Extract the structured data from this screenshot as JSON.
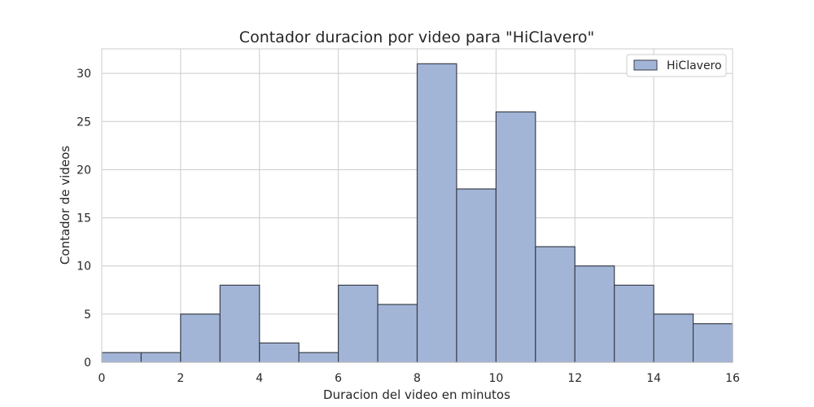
{
  "chart_data": {
    "type": "bar",
    "title": "Contador duracion por video para \"HiClavero\"",
    "xlabel": "Duracion del video en minutos",
    "ylabel": "Contador de videos",
    "xlim": [
      0,
      16
    ],
    "ylim": [
      0,
      32.55
    ],
    "x_ticks": [
      0,
      2,
      4,
      6,
      8,
      10,
      12,
      14,
      16
    ],
    "y_ticks": [
      0,
      5,
      10,
      15,
      20,
      25,
      30
    ],
    "grid": true,
    "legend_position": "top-right",
    "series": [
      {
        "name": "HiClavero",
        "color": "#a3b5d7",
        "bin_edges": [
          0,
          1,
          2,
          3,
          4,
          5,
          6,
          7,
          8,
          9,
          10,
          11,
          12,
          13,
          14,
          15,
          16
        ],
        "values": [
          1,
          1,
          5,
          8,
          2,
          1,
          8,
          6,
          31,
          18,
          26,
          12,
          10,
          8,
          5,
          4
        ]
      }
    ]
  }
}
